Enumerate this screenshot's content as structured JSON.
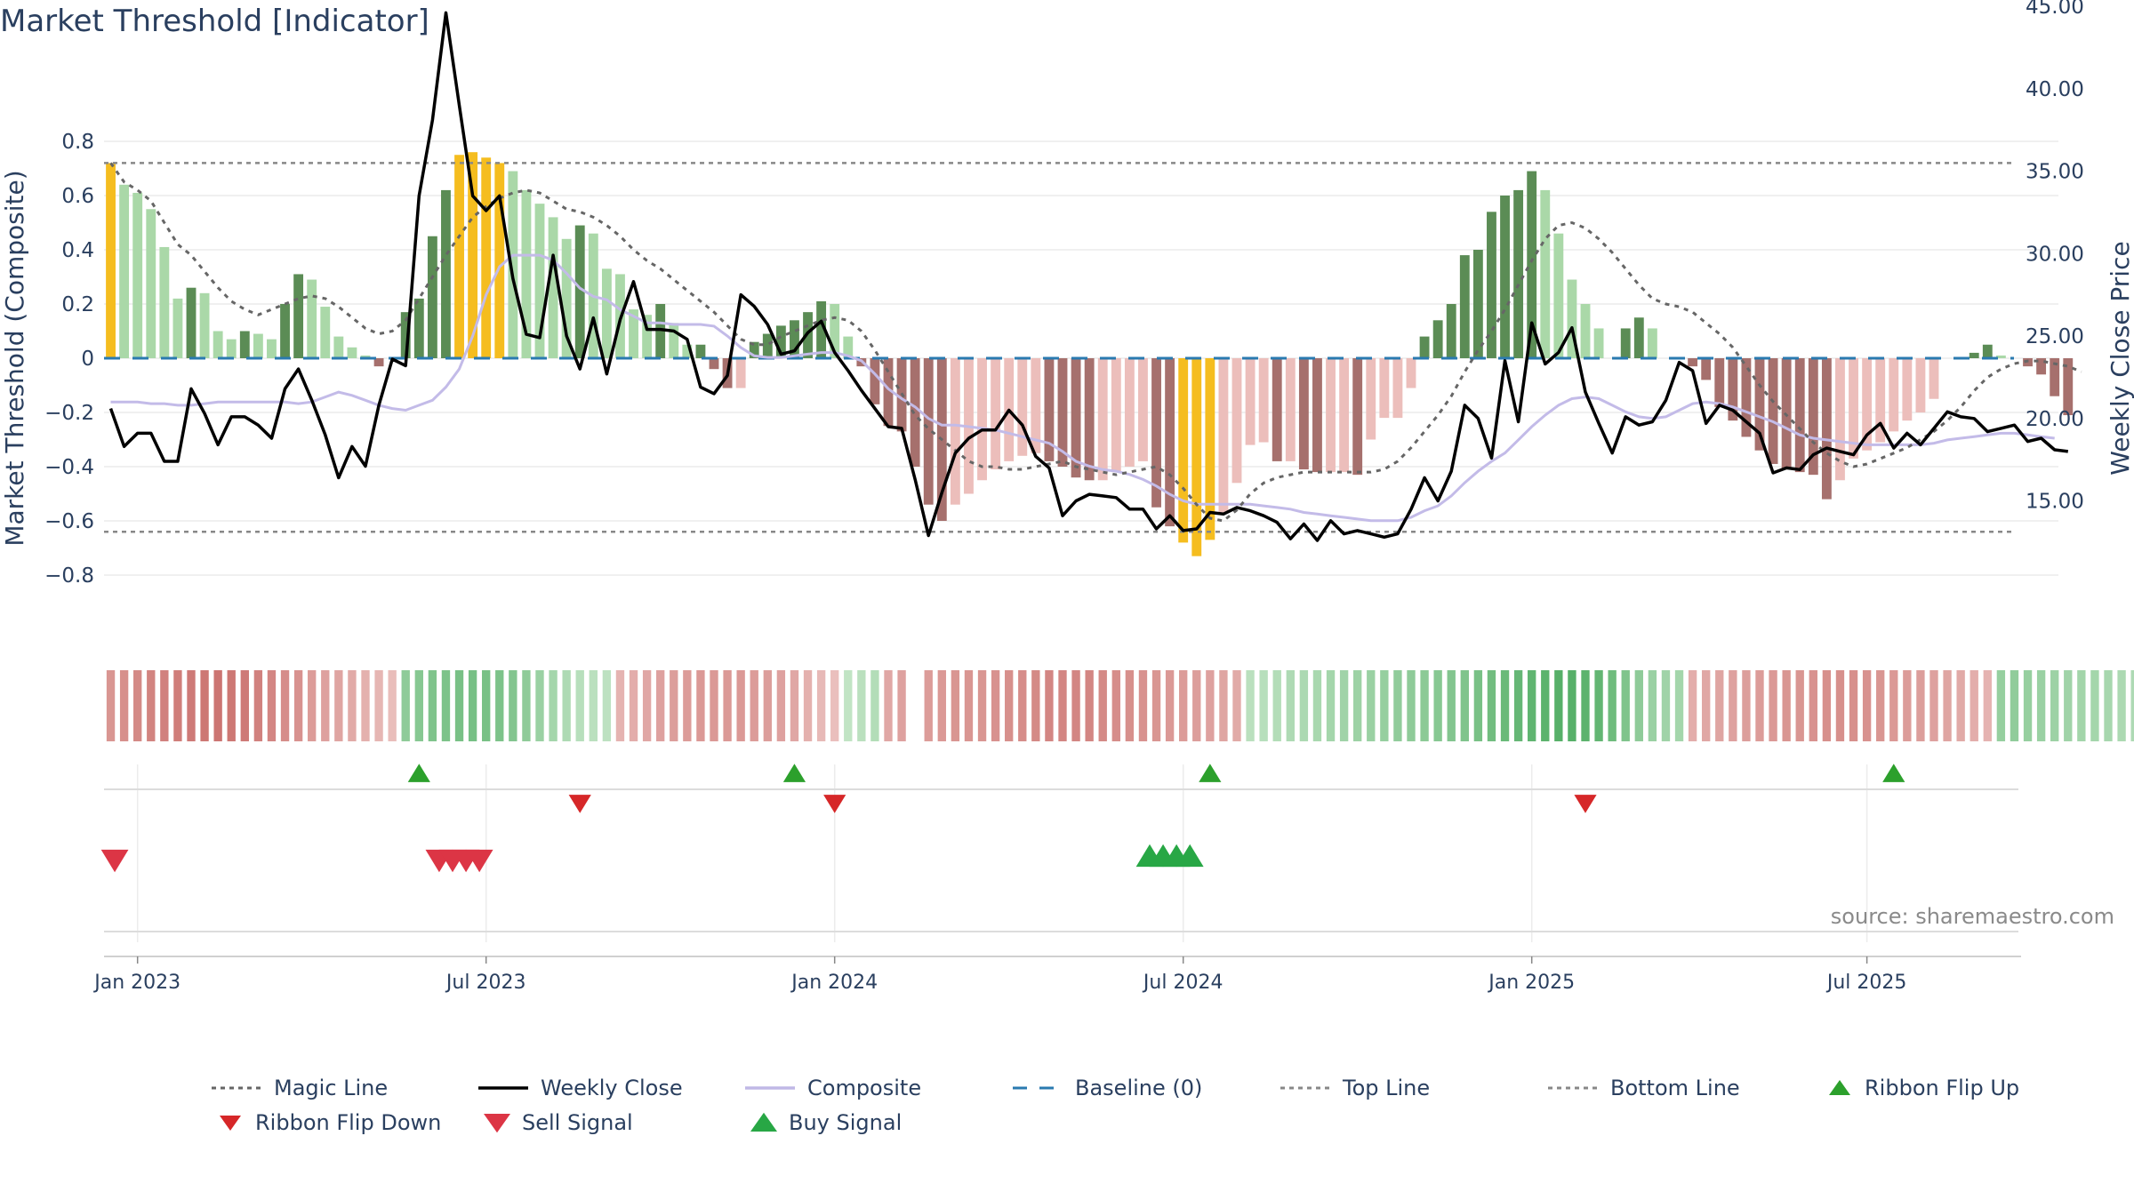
{
  "title": "Market Threshold [Indicator]",
  "source": "source: sharemaestro.com",
  "chart_data": {
    "type": "bar",
    "y_left": {
      "label": "Market Threshold (Composite)",
      "range": [
        -0.85,
        0.82
      ],
      "ticks": [
        {
          "v": 0.8,
          "t": "0.8"
        },
        {
          "v": 0.6,
          "t": "0.6"
        },
        {
          "v": 0.4,
          "t": "0.4"
        },
        {
          "v": 0.2,
          "t": "0.2"
        },
        {
          "v": 0,
          "t": "0"
        },
        {
          "v": -0.2,
          "t": "−0.2"
        },
        {
          "v": -0.4,
          "t": "−0.4"
        },
        {
          "v": -0.6,
          "t": "−0.6"
        },
        {
          "v": -0.8,
          "t": "−0.8"
        }
      ]
    },
    "y_right": {
      "label": "Weekly Close Price",
      "range": [
        11.5,
        45.5
      ],
      "ticks": [
        {
          "v": 45,
          "t": "45.00"
        },
        {
          "v": 40,
          "t": "40.00"
        },
        {
          "v": 35,
          "t": "35.00"
        },
        {
          "v": 30,
          "t": "30.00"
        },
        {
          "v": 25,
          "t": "25.00"
        },
        {
          "v": 20,
          "t": "20.00"
        },
        {
          "v": 15,
          "t": "15.00"
        }
      ]
    },
    "x_ticks": [
      {
        "week": 2,
        "t": "Jan 2023"
      },
      {
        "week": 28,
        "t": "Jul 2023"
      },
      {
        "week": 54,
        "t": "Jan 2024"
      },
      {
        "week": 80,
        "t": "Jul 2024"
      },
      {
        "week": 106,
        "t": "Jan 2025"
      },
      {
        "week": 131,
        "t": "Jul 2025"
      }
    ],
    "weeks": 143,
    "top_line": 0.72,
    "bottom_line": -0.64,
    "composite_bars": [
      0.72,
      0.64,
      0.61,
      0.55,
      0.41,
      0.22,
      0.26,
      0.24,
      0.1,
      0.07,
      0.1,
      0.09,
      0.07,
      0.2,
      0.31,
      0.29,
      0.19,
      0.08,
      0.04,
      0.01,
      -0.03,
      0.0,
      0.17,
      0.22,
      0.45,
      0.62,
      0.75,
      0.76,
      0.74,
      0.72,
      0.69,
      0.62,
      0.57,
      0.52,
      0.44,
      0.49,
      0.46,
      0.33,
      0.31,
      0.18,
      0.16,
      0.2,
      0.13,
      0.05,
      0.05,
      -0.04,
      -0.11,
      -0.11,
      0.06,
      0.09,
      0.12,
      0.14,
      0.17,
      0.21,
      0.2,
      0.08,
      -0.03,
      -0.17,
      -0.25,
      -0.27,
      -0.4,
      -0.54,
      -0.6,
      -0.54,
      -0.5,
      -0.45,
      -0.41,
      -0.38,
      -0.36,
      -0.35,
      -0.38,
      -0.4,
      -0.44,
      -0.45,
      -0.45,
      -0.42,
      -0.4,
      -0.38,
      -0.55,
      -0.62,
      -0.68,
      -0.73,
      -0.67,
      -0.57,
      -0.46,
      -0.32,
      -0.31,
      -0.38,
      -0.38,
      -0.41,
      -0.42,
      -0.42,
      -0.42,
      -0.43,
      -0.3,
      -0.22,
      -0.22,
      -0.11,
      0.08,
      0.14,
      0.2,
      0.38,
      0.4,
      0.54,
      0.6,
      0.62,
      0.69,
      0.62,
      0.46,
      0.29,
      0.2,
      0.11,
      0.0,
      0.11,
      0.15,
      0.11,
      0.0,
      0.0,
      -0.03,
      -0.08,
      -0.18,
      -0.23,
      -0.29,
      -0.34,
      -0.39,
      -0.41,
      -0.42,
      -0.43,
      -0.52,
      -0.45,
      -0.37,
      -0.34,
      -0.31,
      -0.27,
      -0.23,
      -0.2,
      -0.15,
      0.0,
      0.0,
      0.02,
      0.05,
      0.01,
      0.0,
      -0.03,
      -0.06,
      -0.14,
      -0.21
    ],
    "weekly_close": [
      20.6,
      18.3,
      19.1,
      19.1,
      17.4,
      17.4,
      21.8,
      20.3,
      18.4,
      20.1,
      20.1,
      19.6,
      18.8,
      21.8,
      23.0,
      21.1,
      19.0,
      16.4,
      18.3,
      17.1,
      20.8,
      23.6,
      23.2,
      33.5,
      38.1,
      44.6,
      39.0,
      33.5,
      32.6,
      33.5,
      28.5,
      25.1,
      24.9,
      29.9,
      25.0,
      23.0,
      26.1,
      22.7,
      26.0,
      28.3,
      25.4,
      25.4,
      25.3,
      24.8,
      21.9,
      21.5,
      22.6,
      27.5,
      26.8,
      25.7,
      23.9,
      24.1,
      25.2,
      25.9,
      24.0,
      22.9,
      21.7,
      20.6,
      19.5,
      19.4,
      16.3,
      12.9,
      15.5,
      17.9,
      18.8,
      19.3,
      19.3,
      20.5,
      19.6,
      17.7,
      17.0,
      14.1,
      15.0,
      15.4,
      15.3,
      15.2,
      14.5,
      14.5,
      13.3,
      14.1,
      13.2,
      13.3,
      14.3,
      14.2,
      14.6,
      14.4,
      14.1,
      13.7,
      12.7,
      13.6,
      12.6,
      13.8,
      13.0,
      13.2,
      13.0,
      12.8,
      13.0,
      14.5,
      16.4,
      15.0,
      16.8,
      20.8,
      20.0,
      17.6,
      23.5,
      19.8,
      25.8,
      23.3,
      24.0,
      25.5,
      21.6,
      19.7,
      17.9,
      20.1,
      19.6,
      19.8,
      21.1,
      23.4,
      22.9,
      19.7,
      20.8,
      20.5,
      19.8,
      19.1,
      16.7,
      17.0,
      16.9,
      17.8,
      18.2,
      18.0,
      17.8,
      19.0,
      19.7,
      18.2,
      19.1,
      18.4,
      19.4,
      20.4,
      20.1,
      20.0,
      19.2,
      19.4,
      19.6,
      18.6,
      18.8,
      18.1,
      18.0
    ],
    "composite_line": [
      21.0,
      21.0,
      21.0,
      20.9,
      20.9,
      20.8,
      20.8,
      20.9,
      21.0,
      21.0,
      21.0,
      21.0,
      21.0,
      21.0,
      20.9,
      21.0,
      21.3,
      21.6,
      21.4,
      21.1,
      20.8,
      20.6,
      20.5,
      20.8,
      21.1,
      21.9,
      23.0,
      25.0,
      27.5,
      29.2,
      29.9,
      29.9,
      29.9,
      29.6,
      28.8,
      27.9,
      27.4,
      27.2,
      26.6,
      26.2,
      25.8,
      25.8,
      25.7,
      25.7,
      25.7,
      25.6,
      25.0,
      24.3,
      23.8,
      23.7,
      23.7,
      23.8,
      23.9,
      24.0,
      24.0,
      23.8,
      23.5,
      22.7,
      21.8,
      21.2,
      20.7,
      20.0,
      19.6,
      19.6,
      19.5,
      19.4,
      19.3,
      19.1,
      18.9,
      18.7,
      18.5,
      18.0,
      17.4,
      17.1,
      16.9,
      16.8,
      16.6,
      16.3,
      15.9,
      15.4,
      15.0,
      14.8,
      14.8,
      14.8,
      14.8,
      14.8,
      14.7,
      14.6,
      14.5,
      14.3,
      14.2,
      14.1,
      14.0,
      13.9,
      13.8,
      13.8,
      13.8,
      14.0,
      14.4,
      14.7,
      15.3,
      16.1,
      16.8,
      17.4,
      17.9,
      18.7,
      19.5,
      20.2,
      20.8,
      21.2,
      21.3,
      21.2,
      20.8,
      20.4,
      20.1,
      20.0,
      20.1,
      20.5,
      20.9,
      21.0,
      20.9,
      20.7,
      20.4,
      20.1,
      19.8,
      19.4,
      19.0,
      18.8,
      18.7,
      18.6,
      18.5,
      18.4,
      18.4,
      18.4,
      18.4,
      18.4,
      18.5,
      18.7,
      18.8,
      18.9,
      19.0,
      19.1,
      19.1,
      19.0,
      18.9,
      18.8
    ],
    "magic_line": [
      0.72,
      0.65,
      0.62,
      0.58,
      0.5,
      0.42,
      0.38,
      0.32,
      0.26,
      0.21,
      0.18,
      0.16,
      0.18,
      0.2,
      0.22,
      0.23,
      0.22,
      0.19,
      0.15,
      0.11,
      0.09,
      0.1,
      0.14,
      0.22,
      0.3,
      0.38,
      0.45,
      0.52,
      0.56,
      0.59,
      0.61,
      0.62,
      0.61,
      0.58,
      0.55,
      0.54,
      0.52,
      0.49,
      0.45,
      0.4,
      0.36,
      0.33,
      0.29,
      0.25,
      0.21,
      0.17,
      0.12,
      0.07,
      0.05,
      0.05,
      0.08,
      0.1,
      0.12,
      0.14,
      0.15,
      0.14,
      0.1,
      0.03,
      -0.05,
      -0.13,
      -0.21,
      -0.26,
      -0.3,
      -0.34,
      -0.38,
      -0.4,
      -0.4,
      -0.41,
      -0.41,
      -0.4,
      -0.39,
      -0.38,
      -0.4,
      -0.41,
      -0.42,
      -0.43,
      -0.42,
      -0.41,
      -0.4,
      -0.43,
      -0.48,
      -0.54,
      -0.59,
      -0.6,
      -0.56,
      -0.5,
      -0.46,
      -0.44,
      -0.43,
      -0.42,
      -0.42,
      -0.42,
      -0.42,
      -0.42,
      -0.42,
      -0.41,
      -0.38,
      -0.33,
      -0.27,
      -0.21,
      -0.14,
      -0.05,
      0.03,
      0.1,
      0.18,
      0.27,
      0.36,
      0.44,
      0.49,
      0.5,
      0.48,
      0.44,
      0.39,
      0.33,
      0.27,
      0.22,
      0.2,
      0.19,
      0.17,
      0.13,
      0.09,
      0.04,
      -0.03,
      -0.1,
      -0.16,
      -0.21,
      -0.26,
      -0.31,
      -0.35,
      -0.38,
      -0.4,
      -0.39,
      -0.37,
      -0.35,
      -0.33,
      -0.3,
      -0.27,
      -0.23,
      -0.18,
      -0.12,
      -0.07,
      -0.04,
      -0.02,
      -0.01,
      -0.01,
      -0.02,
      -0.03,
      -0.05
    ],
    "bar_colors": {
      "yellow": "#f5bd1f",
      "green_dark": "#5b8c55",
      "green_light": "#aad8a8",
      "red_dark": "#a6706d",
      "red_light": "#ecbebb"
    },
    "ribbon": [
      -0.55,
      -0.6,
      -0.65,
      -0.7,
      -0.72,
      -0.75,
      -0.78,
      -0.8,
      -0.82,
      -0.8,
      -0.78,
      -0.72,
      -0.68,
      -0.62,
      -0.58,
      -0.5,
      -0.45,
      -0.42,
      -0.38,
      -0.32,
      -0.28,
      -0.22,
      0.5,
      0.55,
      0.6,
      0.62,
      0.65,
      0.66,
      0.65,
      0.62,
      0.58,
      0.5,
      0.42,
      0.35,
      0.28,
      0.22,
      0.2,
      0.18,
      -0.3,
      -0.35,
      -0.4,
      -0.45,
      -0.48,
      -0.5,
      -0.52,
      -0.52,
      -0.52,
      -0.52,
      -0.5,
      -0.48,
      -0.45,
      -0.4,
      -0.32,
      -0.25,
      -0.2,
      0.15,
      0.2,
      0.25,
      -0.4,
      -0.45,
      -0.48,
      -0.5,
      -0.52,
      -0.55,
      -0.55,
      -0.55,
      -0.58,
      -0.6,
      -0.62,
      -0.65,
      -0.68,
      -0.68,
      -0.68,
      -0.68,
      -0.65,
      -0.62,
      -0.6,
      -0.58,
      -0.55,
      -0.52,
      -0.5,
      -0.48,
      -0.45,
      -0.42,
      -0.38,
      0.2,
      0.22,
      0.25,
      0.28,
      0.3,
      0.32,
      0.35,
      0.38,
      0.4,
      0.42,
      0.45,
      0.48,
      0.5,
      0.52,
      0.55,
      0.58,
      0.6,
      0.65,
      0.7,
      0.75,
      0.78,
      0.82,
      0.85,
      0.88,
      0.88,
      0.85,
      0.8,
      0.72,
      0.6,
      0.5,
      0.42,
      0.38,
      0.35,
      -0.35,
      -0.4,
      -0.42,
      -0.45,
      -0.48,
      -0.5,
      -0.52,
      -0.55,
      -0.55,
      -0.58,
      -0.6,
      -0.6,
      -0.6,
      -0.58,
      -0.55,
      -0.52,
      -0.5,
      -0.48,
      -0.45,
      -0.42,
      -0.38,
      -0.35,
      -0.3,
      0.45,
      0.48,
      0.45,
      0.42,
      0.4,
      0.38,
      0.36,
      0.35,
      0.33,
      0.3,
      0.28,
      0.25
    ],
    "ribbon_gap_week": 60,
    "ribbon_flip_up": [
      23.0,
      51.0,
      82.0,
      133.0
    ],
    "ribbon_flip_down": [
      35.0,
      54.0,
      110.0
    ],
    "buy_signals": [
      77.5,
      78.5,
      79.5,
      80.5
    ],
    "sell_signals": [
      0.3,
      24.5,
      25.5,
      26.5,
      27.5
    ],
    "series": [
      {
        "name": "Magic Line",
        "color": "#666666",
        "dash": "dot"
      },
      {
        "name": "Weekly Close",
        "color": "#000000",
        "dash": "solid"
      },
      {
        "name": "Composite",
        "color": "#c0b8e6",
        "dash": "solid"
      },
      {
        "name": "Baseline (0)",
        "color": "#2a7ab0",
        "dash": "dash"
      },
      {
        "name": "Top Line",
        "color": "#888888",
        "dash": "dot"
      },
      {
        "name": "Bottom Line",
        "color": "#888888",
        "dash": "dot"
      },
      {
        "name": "Ribbon Flip Up",
        "color": "#2ca02c",
        "marker": "up"
      },
      {
        "name": "Ribbon Flip Down",
        "color": "#d62728",
        "marker": "down"
      },
      {
        "name": "Sell Signal",
        "color": "#dc3545",
        "marker": "down"
      },
      {
        "name": "Buy Signal",
        "color": "#28a745",
        "marker": "up"
      }
    ]
  }
}
